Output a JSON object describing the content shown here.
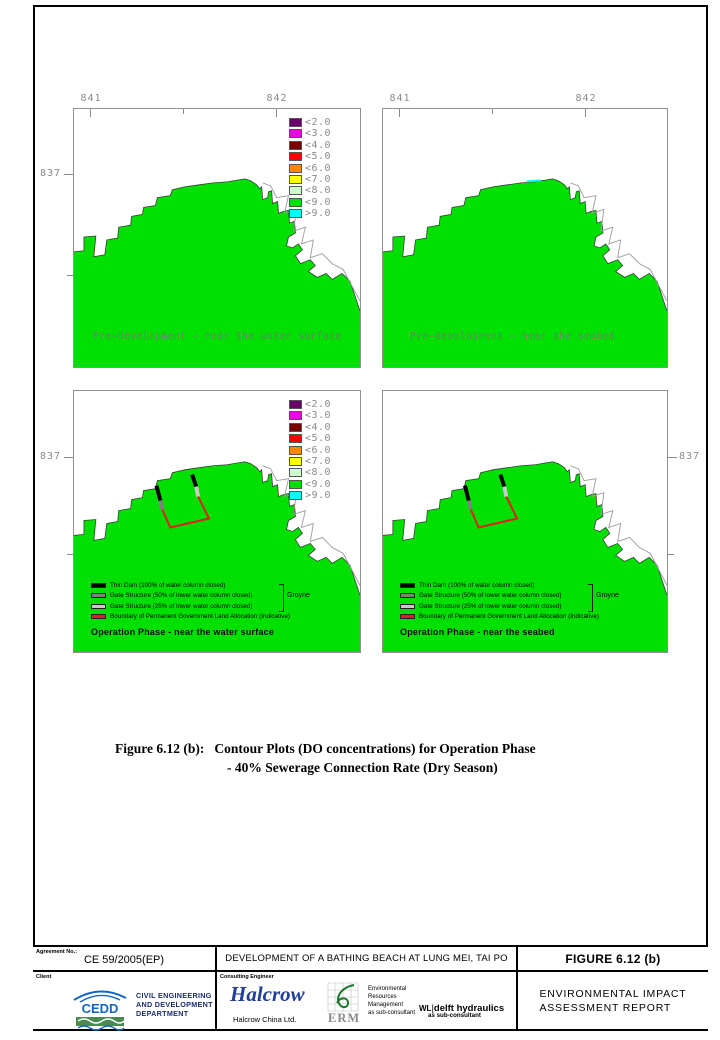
{
  "figure": {
    "caption_label": "Figure 6.12 (b):",
    "caption_line1": "Contour Plots (DO concentrations) for Operation Phase",
    "caption_line2": "- 40% Sewerage Connection Rate (Dry Season)"
  },
  "do_scale": {
    "items": [
      {
        "label": "<2.0",
        "color": "#6a006a"
      },
      {
        "label": "<3.0",
        "color": "#ee00ee"
      },
      {
        "label": "<4.0",
        "color": "#7a0000"
      },
      {
        "label": "<5.0",
        "color": "#ff0000"
      },
      {
        "label": "<6.0",
        "color": "#ff8800"
      },
      {
        "label": "<7.0",
        "color": "#ffff00"
      },
      {
        "label": "<8.0",
        "color": "#ccffcc"
      },
      {
        "label": "<9.0",
        "color": "#00e000"
      },
      {
        "label": ">9.0",
        "color": "#00ffff"
      }
    ]
  },
  "structure_legend": {
    "items": [
      {
        "label": "Thin Dam (100% of water column closed)",
        "color": "#000000"
      },
      {
        "label": "Gate Structure (50% of lower water column closed)",
        "color": "#808080"
      },
      {
        "label": "Gate Structure (25% of lower water column closed)",
        "color": "#c9c9c9"
      },
      {
        "label": "Boundary of Permanent Government Land Allocation (Indicative)",
        "color": "#e02020"
      }
    ],
    "groyne_label": "Groyne"
  },
  "panels": [
    {
      "id": "pre-development-surface",
      "caption": "Pre−development − near the water surface",
      "top_tick_labels": [
        "841",
        "842"
      ],
      "side_tick_label": "837",
      "show_scale_legend": true,
      "show_structure": false,
      "cyan_patch": false
    },
    {
      "id": "pre-development-seabed",
      "caption": "Pre−development − near the seabed",
      "top_tick_labels": [
        "841",
        "842"
      ],
      "side_tick_label": null,
      "show_scale_legend": false,
      "show_structure": false,
      "cyan_patch": true
    },
    {
      "id": "operation-surface",
      "caption": "Operation Phase - near the water surface",
      "top_tick_labels": null,
      "side_tick_label": "837",
      "show_scale_legend": true,
      "show_structure": true,
      "cyan_patch": false
    },
    {
      "id": "operation-seabed",
      "caption": "Operation Phase - near the seabed",
      "top_tick_labels": null,
      "side_tick_label": "837",
      "show_scale_legend": false,
      "show_structure": true,
      "cyan_patch": false
    }
  ],
  "footer": {
    "agreement_label": "Agreement No.:",
    "agreement_value": "CE 59/2005(EP)",
    "project_title": "DEVELOPMENT OF A BATHING BEACH AT LUNG MEI, TAI PO",
    "figure_ref": "FIGURE 6.12 (b)",
    "client_label": "Client",
    "cedd_acronym": "CEDD",
    "client_name_lines": [
      "CIVIL ENGINEERING",
      "AND DEVELOPMENT",
      "DEPARTMENT"
    ],
    "consulting_label": "Consulting Engineer",
    "halcrow_name": "Halcrow",
    "halcrow_sub": "Halcrow China Ltd.",
    "erm_acronym": "ERM",
    "erm_lines": [
      "Environmental",
      "Resources",
      "Management",
      "as sub-consultant"
    ],
    "wl_mark": "WL",
    "wl_name": "delft hydraulics",
    "wl_sub": "as sub-consultant",
    "report_lines": [
      "ENVIRONMENTAL IMPACT",
      "ASSESSMENT REPORT"
    ]
  }
}
